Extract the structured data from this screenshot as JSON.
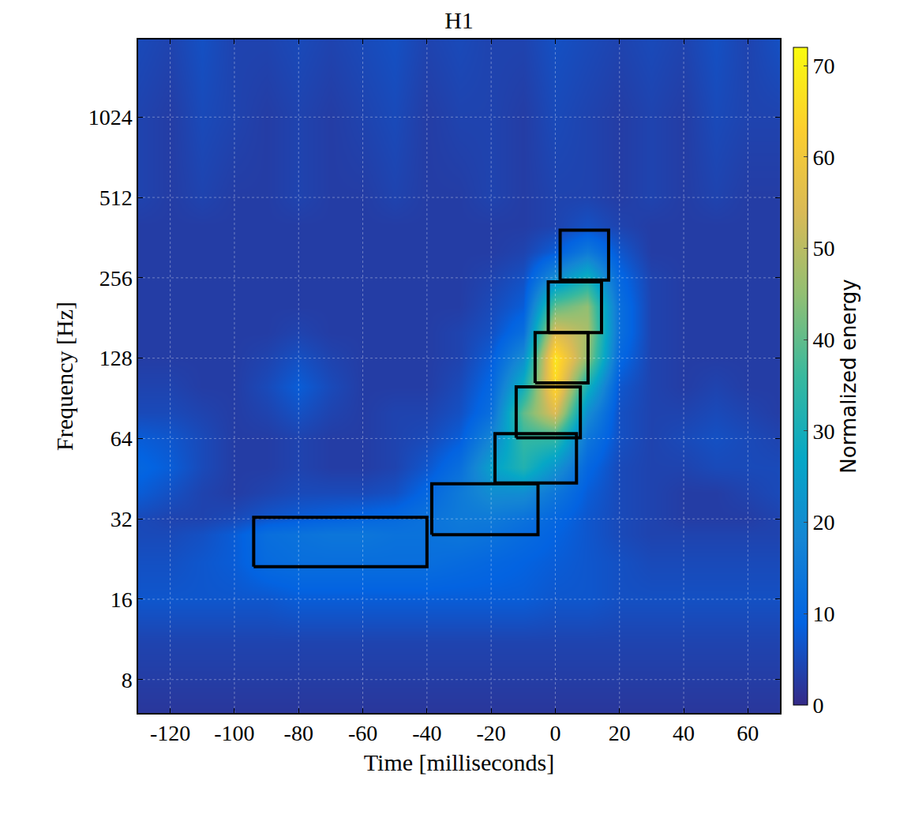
{
  "chart_data": {
    "type": "heatmap",
    "title": "H1",
    "x_label": "Time [milliseconds]",
    "y_label": "Frequency [Hz]",
    "colorbar_label": "Normalized energy",
    "log": "y",
    "grid": true,
    "xlim": [
      -130,
      70
    ],
    "xticks": [
      -120,
      -100,
      -80,
      -60,
      -40,
      -20,
      0,
      20,
      40,
      60
    ],
    "ylim": [
      6,
      2000
    ],
    "yticks": [
      8,
      16,
      32,
      64,
      128,
      256,
      512,
      1024
    ],
    "zlim": [
      0,
      72
    ],
    "zticks": [
      0,
      10,
      20,
      30,
      40,
      50,
      60,
      70
    ],
    "x": [
      -130,
      -120,
      -110,
      -100,
      -90,
      -80,
      -70,
      -60,
      -50,
      -40,
      -30,
      -20,
      -10,
      0,
      10,
      20,
      30,
      40,
      50,
      60,
      70
    ],
    "y": [
      6,
      8,
      11,
      16,
      22,
      28,
      32,
      40,
      50,
      64,
      80,
      100,
      128,
      160,
      200,
      256,
      320,
      400,
      512,
      1024,
      2000
    ],
    "z": [
      [
        2,
        2,
        2,
        2,
        2,
        2,
        2,
        2,
        2,
        2,
        2,
        2,
        2,
        2,
        2,
        2,
        2,
        2,
        2,
        2,
        2
      ],
      [
        3,
        3,
        3,
        3,
        3,
        3,
        3,
        3,
        3,
        3,
        3,
        3,
        3,
        3,
        3,
        3,
        3,
        3,
        3,
        3,
        3
      ],
      [
        4,
        4,
        4,
        4,
        4,
        4,
        4,
        4,
        4,
        4,
        4,
        4,
        4,
        4,
        4,
        4,
        4,
        4,
        4,
        4,
        4
      ],
      [
        7,
        7,
        7,
        7,
        7,
        8,
        8,
        8,
        8,
        8,
        8,
        8,
        8,
        7,
        7,
        6,
        6,
        6,
        6,
        6,
        6
      ],
      [
        6,
        6,
        7,
        8,
        11,
        12,
        12,
        12,
        12,
        12,
        11,
        10,
        9,
        8,
        7,
        6,
        5,
        5,
        5,
        5,
        5
      ],
      [
        5,
        5,
        6,
        8,
        12,
        13,
        14,
        14,
        13,
        13,
        14,
        13,
        11,
        9,
        7,
        5,
        4,
        4,
        4,
        4,
        4
      ],
      [
        5,
        4,
        4,
        5,
        7,
        8,
        9,
        10,
        11,
        13,
        15,
        15,
        13,
        10,
        7,
        5,
        4,
        3,
        3,
        3,
        4
      ],
      [
        8,
        6,
        4,
        3,
        4,
        5,
        5,
        5,
        6,
        10,
        15,
        20,
        20,
        14,
        8,
        5,
        4,
        3,
        3,
        4,
        5
      ],
      [
        10,
        8,
        5,
        3,
        3,
        4,
        3,
        3,
        4,
        7,
        12,
        25,
        32,
        22,
        10,
        5,
        4,
        4,
        5,
        5,
        5
      ],
      [
        8,
        7,
        5,
        3,
        3,
        4,
        3,
        3,
        4,
        5,
        8,
        18,
        35,
        35,
        14,
        6,
        4,
        5,
        6,
        5,
        4
      ],
      [
        5,
        5,
        4,
        3,
        4,
        6,
        4,
        3,
        4,
        4,
        6,
        12,
        40,
        55,
        20,
        6,
        4,
        4,
        5,
        4,
        3
      ],
      [
        4,
        4,
        3,
        3,
        5,
        8,
        5,
        3,
        3,
        3,
        5,
        10,
        30,
        65,
        30,
        7,
        4,
        3,
        4,
        3,
        3
      ],
      [
        3,
        3,
        3,
        3,
        4,
        6,
        4,
        3,
        3,
        3,
        4,
        8,
        20,
        68,
        45,
        10,
        4,
        3,
        3,
        3,
        3
      ],
      [
        3,
        3,
        3,
        3,
        3,
        4,
        3,
        3,
        3,
        3,
        4,
        6,
        12,
        55,
        48,
        12,
        4,
        3,
        3,
        3,
        3
      ],
      [
        3,
        3,
        3,
        3,
        3,
        3,
        3,
        3,
        3,
        3,
        3,
        5,
        8,
        40,
        45,
        12,
        4,
        3,
        3,
        3,
        3
      ],
      [
        3,
        3,
        3,
        3,
        3,
        3,
        3,
        3,
        3,
        3,
        3,
        4,
        6,
        20,
        30,
        10,
        4,
        3,
        3,
        3,
        3
      ],
      [
        3,
        3,
        3,
        3,
        3,
        3,
        3,
        3,
        3,
        3,
        3,
        3,
        4,
        8,
        15,
        7,
        3,
        3,
        3,
        3,
        3
      ],
      [
        3,
        3,
        3,
        3,
        3,
        3,
        3,
        3,
        3,
        3,
        3,
        3,
        3,
        4,
        6,
        4,
        3,
        3,
        3,
        3,
        3
      ],
      [
        4,
        3,
        4,
        3,
        3,
        4,
        3,
        3,
        4,
        3,
        3,
        4,
        3,
        4,
        4,
        3,
        4,
        3,
        4,
        3,
        3
      ],
      [
        4,
        3,
        5,
        4,
        3,
        4,
        3,
        4,
        5,
        3,
        4,
        4,
        3,
        5,
        4,
        3,
        4,
        3,
        5,
        4,
        4
      ],
      [
        5,
        4,
        6,
        4,
        4,
        5,
        4,
        5,
        6,
        4,
        5,
        4,
        4,
        6,
        5,
        4,
        5,
        4,
        6,
        4,
        6
      ]
    ],
    "tiles": [
      {
        "x": [
          -94,
          -40
        ],
        "y": [
          21.2,
          32.4
        ]
      },
      {
        "x": [
          -38.5,
          -5.4
        ],
        "y": [
          27.9,
          43.3
        ]
      },
      {
        "x": [
          -18.8,
          6.6
        ],
        "y": [
          43.6,
          66.7
        ]
      },
      {
        "x": [
          -12.2,
          7.8
        ],
        "y": [
          64.4,
          100
        ]
      },
      {
        "x": [
          -6.3,
          10.2
        ],
        "y": [
          103.4,
          159.5
        ]
      },
      {
        "x": [
          -2.2,
          14.4
        ],
        "y": [
          159.6,
          247
        ]
      },
      {
        "x": [
          1.5,
          16.6
        ],
        "y": [
          251,
          386
        ]
      }
    ]
  }
}
